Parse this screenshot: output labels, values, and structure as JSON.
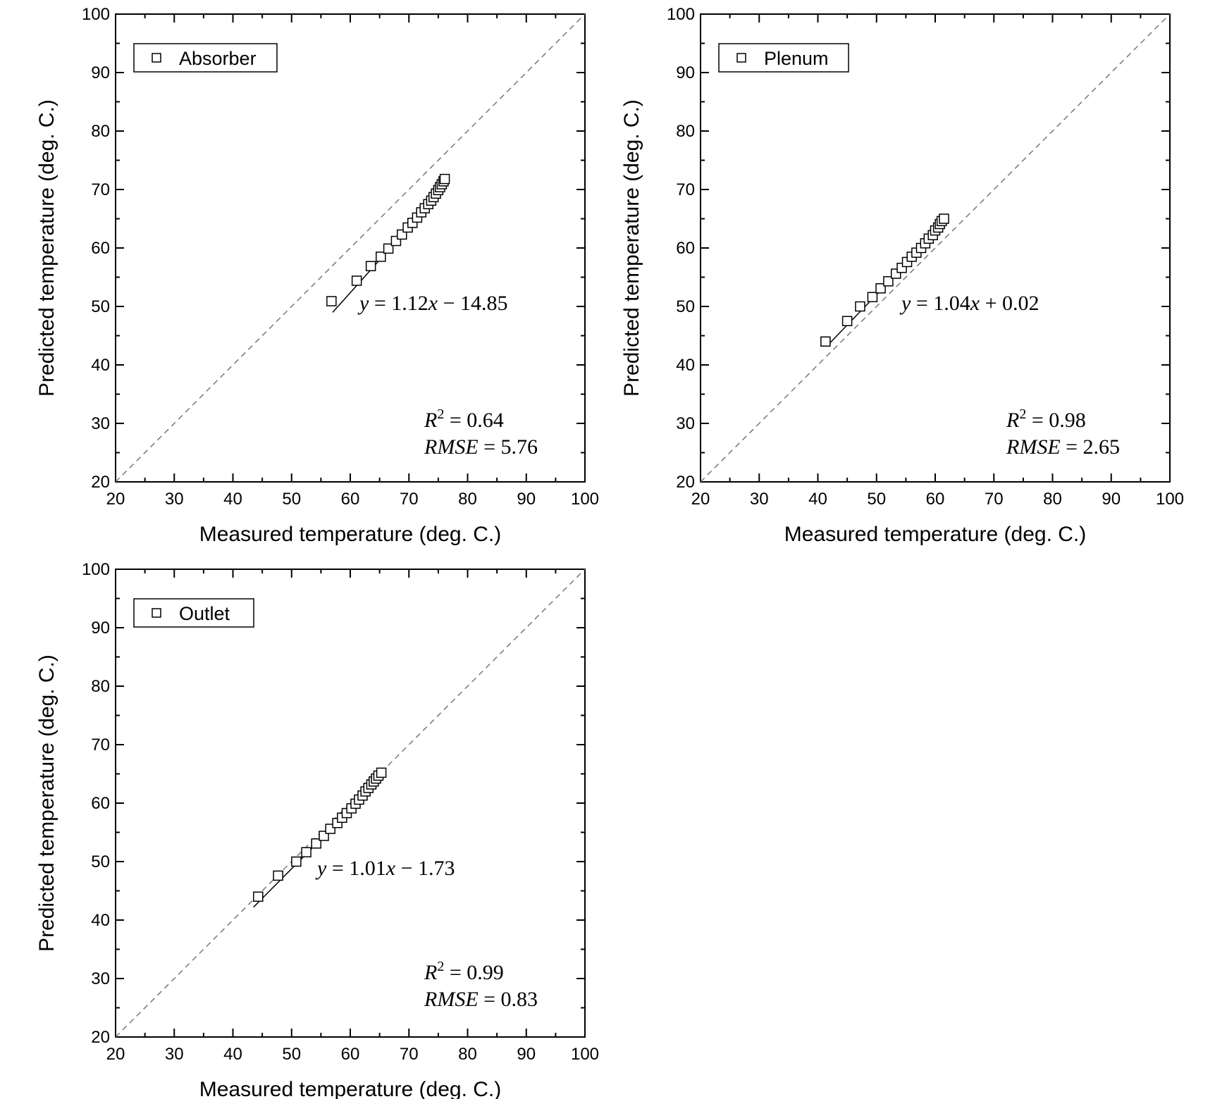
{
  "chart_data": [
    {
      "type": "scatter",
      "legend": "Absorber",
      "xlabel": "Measured temperature (deg. C.)",
      "ylabel": "Predicted temperature (deg. C.)",
      "xlim": [
        20,
        100
      ],
      "ylim": [
        20,
        100
      ],
      "xticks": [
        "20",
        "30",
        "40",
        "50",
        "60",
        "70",
        "80",
        "90",
        "100"
      ],
      "yticks": [
        "20",
        "30",
        "40",
        "50",
        "60",
        "70",
        "80",
        "90",
        "100"
      ],
      "reference_line": "y = x (dashed)",
      "fit": {
        "slope": 1.12,
        "intercept": -14.85,
        "x_range": [
          57,
          76.5
        ]
      },
      "equation": {
        "y": "y",
        "eq": " = 1.12",
        "x": "x",
        "rest": " − 14.85"
      },
      "r2": {
        "r": "R",
        "sup": "2",
        "rest": " = 0.64"
      },
      "rmse": {
        "label": "RMSE",
        "rest": " = 5.76"
      },
      "points": [
        [
          56.8,
          50.9
        ],
        [
          61.1,
          54.4
        ],
        [
          63.5,
          56.9
        ],
        [
          65.2,
          58.5
        ],
        [
          66.5,
          59.9
        ],
        [
          67.8,
          61.2
        ],
        [
          68.8,
          62.3
        ],
        [
          69.8,
          63.5
        ],
        [
          70.6,
          64.3
        ],
        [
          71.4,
          65.2
        ],
        [
          72.1,
          66.1
        ],
        [
          72.7,
          66.8
        ],
        [
          73.3,
          67.5
        ],
        [
          73.8,
          68.1
        ],
        [
          74.2,
          68.7
        ],
        [
          74.6,
          69.3
        ],
        [
          75.0,
          69.9
        ],
        [
          75.3,
          70.4
        ],
        [
          75.6,
          70.9
        ],
        [
          75.9,
          71.4
        ],
        [
          76.1,
          71.8
        ]
      ]
    },
    {
      "type": "scatter",
      "legend": "Plenum",
      "xlabel": "Measured temperature (deg. C.)",
      "ylabel": "Predicted temperature (deg. C.)",
      "xlim": [
        20,
        100
      ],
      "ylim": [
        20,
        100
      ],
      "xticks": [
        "20",
        "30",
        "40",
        "50",
        "60",
        "70",
        "80",
        "90",
        "100"
      ],
      "yticks": [
        "20",
        "30",
        "40",
        "50",
        "60",
        "70",
        "80",
        "90",
        "100"
      ],
      "reference_line": "y = x (dashed)",
      "fit": {
        "slope": 1.04,
        "intercept": 0.02,
        "x_range": [
          41.8,
          62
        ]
      },
      "equation": {
        "y": "y",
        "eq": " = 1.04",
        "x": "x",
        "rest": " + 0.02"
      },
      "r2": {
        "r": "R",
        "sup": "2",
        "rest": " = 0.98"
      },
      "rmse": {
        "label": "RMSE",
        "rest": " = 2.65"
      },
      "points": [
        [
          41.3,
          44.0
        ],
        [
          45.0,
          47.5
        ],
        [
          47.2,
          50.0
        ],
        [
          49.3,
          51.6
        ],
        [
          50.7,
          53.1
        ],
        [
          52.0,
          54.3
        ],
        [
          53.3,
          55.6
        ],
        [
          54.3,
          56.6
        ],
        [
          55.2,
          57.6
        ],
        [
          56.0,
          58.5
        ],
        [
          56.8,
          59.2
        ],
        [
          57.6,
          60.0
        ],
        [
          58.3,
          60.8
        ],
        [
          58.9,
          61.6
        ],
        [
          59.6,
          62.2
        ],
        [
          60.0,
          63.0
        ],
        [
          60.5,
          63.5
        ],
        [
          60.8,
          64.1
        ],
        [
          61.1,
          64.6
        ],
        [
          61.5,
          65.0
        ]
      ]
    },
    {
      "type": "scatter",
      "legend": "Outlet",
      "xlabel": "Measured temperature (deg. C.)",
      "ylabel": "Predicted temperature (deg. C.)",
      "xlim": [
        20,
        100
      ],
      "ylim": [
        20,
        100
      ],
      "xticks": [
        "20",
        "30",
        "40",
        "50",
        "60",
        "70",
        "80",
        "90",
        "100"
      ],
      "yticks": [
        "20",
        "30",
        "40",
        "50",
        "60",
        "70",
        "80",
        "90",
        "100"
      ],
      "reference_line": "y = x (dashed)",
      "fit": {
        "slope": 1.01,
        "intercept": -1.73,
        "x_range": [
          43.5,
          65.8
        ]
      },
      "equation": {
        "y": "y",
        "eq": " = 1.01",
        "x": "x",
        "rest": " − 1.73"
      },
      "r2": {
        "r": "R",
        "sup": "2",
        "rest": " = 0.99"
      },
      "rmse": {
        "label": "RMSE",
        "rest": " = 0.83"
      },
      "points": [
        [
          44.3,
          44.0
        ],
        [
          47.7,
          47.6
        ],
        [
          50.8,
          50.0
        ],
        [
          52.5,
          51.6
        ],
        [
          54.2,
          53.1
        ],
        [
          55.5,
          54.4
        ],
        [
          56.6,
          55.6
        ],
        [
          57.8,
          56.6
        ],
        [
          58.6,
          57.5
        ],
        [
          59.4,
          58.3
        ],
        [
          60.2,
          59.1
        ],
        [
          60.9,
          59.9
        ],
        [
          61.5,
          60.6
        ],
        [
          62.1,
          61.3
        ],
        [
          62.6,
          62.0
        ],
        [
          63.1,
          62.6
        ],
        [
          63.6,
          63.2
        ],
        [
          64.0,
          63.7
        ],
        [
          64.4,
          64.2
        ],
        [
          64.8,
          64.7
        ],
        [
          65.3,
          65.2
        ]
      ]
    }
  ]
}
